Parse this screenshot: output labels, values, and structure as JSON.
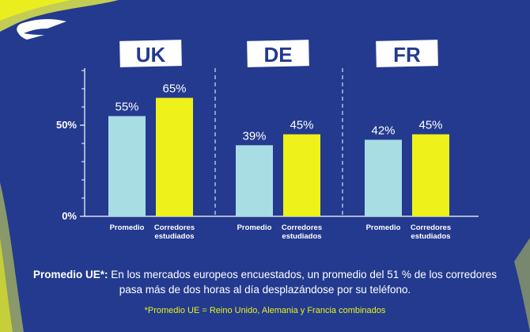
{
  "colors": {
    "background": "#233a8f",
    "promedio": "#a8dde3",
    "corredores": "#eef21a",
    "text": "#ffffff",
    "footnote": "#e6f21a",
    "axis": "#ffffff"
  },
  "logo": {
    "icon": "brand-chevron-logo-icon"
  },
  "chart_data": {
    "type": "bar",
    "ylim": [
      0,
      100
    ],
    "y_ticks": [
      {
        "value": 0,
        "label": "0%"
      },
      {
        "value": 50,
        "label": "50%"
      }
    ],
    "grid": false,
    "legend": "none",
    "groups": [
      {
        "name": "UK",
        "bars": [
          {
            "category": "Promedio",
            "label_lines": [
              "Promedio"
            ],
            "value": 55,
            "value_label": "55%"
          },
          {
            "category": "Corredores estudiados",
            "label_lines": [
              "Corredores",
              "estudiados"
            ],
            "value": 65,
            "value_label": "65%"
          }
        ]
      },
      {
        "name": "DE",
        "bars": [
          {
            "category": "Promedio",
            "label_lines": [
              "Promedio"
            ],
            "value": 39,
            "value_label": "39%"
          },
          {
            "category": "Corredores estudiados",
            "label_lines": [
              "Corredores",
              "estudiados"
            ],
            "value": 45,
            "value_label": "45%"
          }
        ]
      },
      {
        "name": "FR",
        "bars": [
          {
            "category": "Promedio",
            "label_lines": [
              "Promedio"
            ],
            "value": 42,
            "value_label": "42%"
          },
          {
            "category": "Corredores estudiados",
            "label_lines": [
              "Corredores",
              "estudiados"
            ],
            "value": 45,
            "value_label": "45%"
          }
        ]
      }
    ]
  },
  "summary": {
    "bold": "Promedio UE*:",
    "text": " En los mercados europeos encuestados, un promedio del 51 % de los corredores pasa más de dos horas al día desplazándose por su teléfono."
  },
  "footnote": "*Promedio UE = Reino Unido, Alemania y Francia combinados"
}
